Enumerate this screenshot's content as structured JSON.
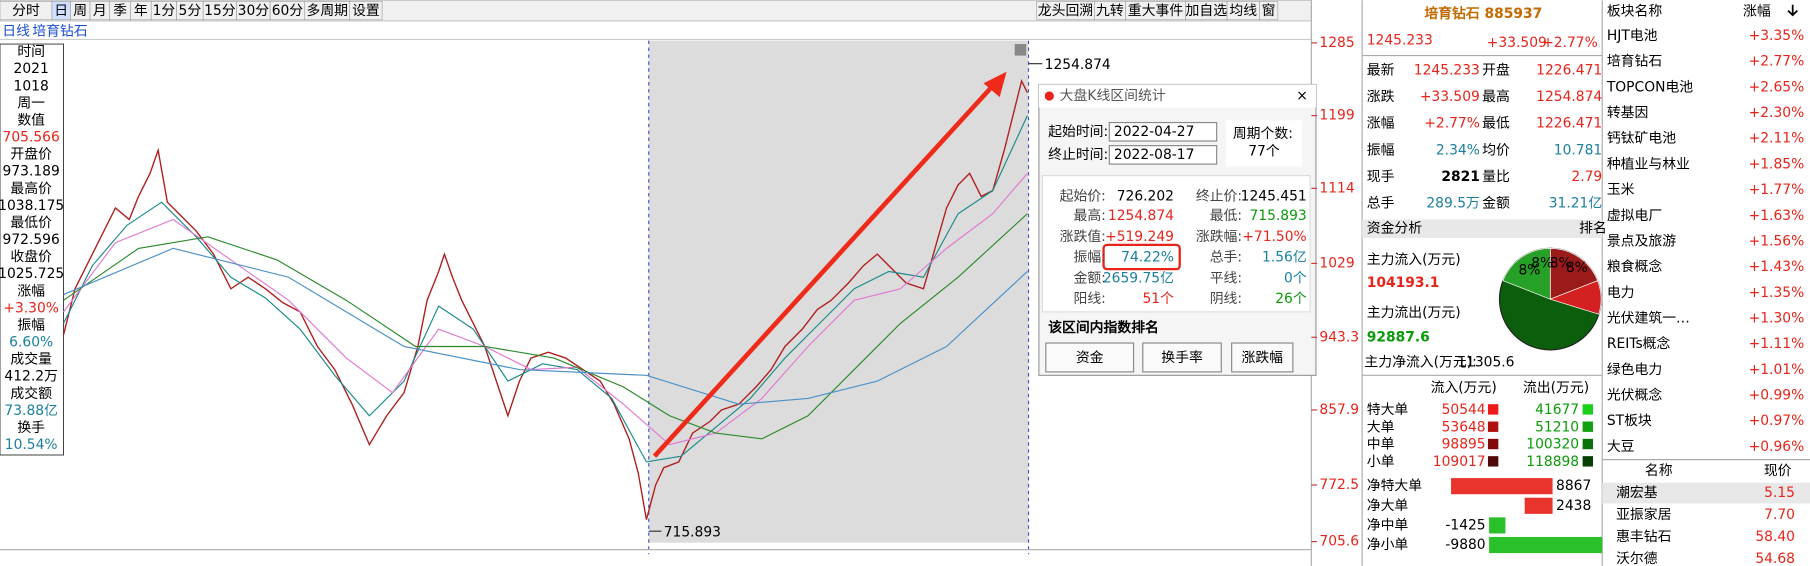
{
  "toolbar": {
    "left": [
      "分时",
      "日",
      "周",
      "月",
      "季",
      "年",
      "1分",
      "5分",
      "15分",
      "30分",
      "60分",
      "多周期",
      "设置"
    ],
    "right": [
      "龙头回溯",
      "九转",
      "重大事件",
      "加自选",
      "均线",
      "窗"
    ]
  },
  "chart": {
    "period": "日线",
    "name": "培育钻石",
    "axis": [
      "1285",
      "1199",
      "1114",
      "1029",
      "943.3",
      "857.9",
      "772.5",
      "705.6"
    ],
    "high_mark": "1254.874",
    "low_mark": "715.893"
  },
  "info": [
    "时间",
    "2021",
    "1018",
    "周一",
    "数值",
    "705.566",
    "开盘价",
    "973.189",
    "最高价",
    "1038.175",
    "最低价",
    "972.596",
    "收盘价",
    "1025.725",
    "涨幅",
    "+3.30%",
    "振幅",
    "6.60%",
    "成交量",
    "412.2万",
    "成交额",
    "73.88亿",
    "换手",
    "10.54%"
  ],
  "dialog": {
    "title": "大盘K线区间统计",
    "start_label": "起始时间:",
    "start": "2022-04-27",
    "end_label": "终止时间:",
    "end": "2022-08-17",
    "count_label": "周期个数:",
    "count": "77个",
    "stats": [
      [
        "起始价:",
        "726.202",
        "终止价:",
        "1245.451"
      ],
      [
        "最高:",
        "1254.874",
        "最低:",
        "715.893"
      ],
      [
        "涨跌值:",
        "+519.249",
        "涨跌幅:",
        "+71.50%"
      ],
      [
        "振幅:",
        "74.22%",
        "总手:",
        "1.56亿"
      ],
      [
        "金额:",
        "2659.75亿",
        "平线:",
        "0个"
      ],
      [
        "阳线:",
        "51个",
        "阴线:",
        "26个"
      ]
    ],
    "section": "该区间内指数排名",
    "buttons": [
      "资金",
      "换手率",
      "涨跌幅"
    ]
  },
  "quote": {
    "name": "培育钻石 885937",
    "price": "1245.233",
    "change": "+33.509",
    "pct": "+2.77%",
    "rows": [
      [
        "最新",
        "1245.233",
        "开盘",
        "1226.471"
      ],
      [
        "涨跌",
        "+33.509",
        "最高",
        "1254.874"
      ],
      [
        "涨幅",
        "+2.77%",
        "最低",
        "1226.471"
      ],
      [
        "振幅",
        "2.34%",
        "均价",
        "10.781"
      ],
      [
        "现手",
        "2821",
        "量比",
        "2.79"
      ],
      [
        "总手",
        "289.5万",
        "金额",
        "31.21亿"
      ]
    ]
  },
  "funds": {
    "tab": "资金分析",
    "tab_right": "排名",
    "inflow_label": "主力流入(万元)",
    "inflow": "104193.1",
    "outflow_label": "主力流出(万元)",
    "outflow": "92887.6",
    "net_label": "主力净流入(万元):",
    "net": "11305.6",
    "pie_labels": [
      "8%",
      "8%",
      "8%",
      "8%"
    ],
    "table_head": [
      "流入(万元)",
      "流出(万元)"
    ],
    "rows": [
      [
        "特大单",
        "50544",
        "41677"
      ],
      [
        "大单",
        "53648",
        "51210"
      ],
      [
        "中单",
        "98895",
        "100320"
      ],
      [
        "小单",
        "109017",
        "118898"
      ]
    ],
    "net_rows": [
      {
        "label": "净特大单",
        "value": 8867
      },
      {
        "label": "净大单",
        "value": 2438
      },
      {
        "label": "净中单",
        "value": -1425
      },
      {
        "label": "净小单",
        "value": -9880
      }
    ]
  },
  "sectors": {
    "head": [
      "板块名称",
      "涨幅"
    ],
    "rows": [
      [
        "HJT电池",
        "+3.35%"
      ],
      [
        "培育钻石",
        "+2.77%"
      ],
      [
        "TOPCON电池",
        "+2.65%"
      ],
      [
        "转基因",
        "+2.30%"
      ],
      [
        "钙钛矿电池",
        "+2.11%"
      ],
      [
        "种植业与林业",
        "+1.85%"
      ],
      [
        "玉米",
        "+1.77%"
      ],
      [
        "虚拟电厂",
        "+1.63%"
      ],
      [
        "景点及旅游",
        "+1.56%"
      ],
      [
        "粮食概念",
        "+1.43%"
      ],
      [
        "电力",
        "+1.35%"
      ],
      [
        "光伏建筑一…",
        "+1.30%"
      ],
      [
        "REITs概念",
        "+1.11%"
      ],
      [
        "绿色电力",
        "+1.01%"
      ],
      [
        "光伏概念",
        "+0.99%"
      ],
      [
        "ST板块",
        "+0.97%"
      ],
      [
        "大豆",
        "+0.96%"
      ]
    ]
  },
  "stocks": {
    "head": [
      "名称",
      "现价"
    ],
    "rows": [
      [
        "潮宏基",
        "5.15"
      ],
      [
        "亚振家居",
        "7.70"
      ],
      [
        "惠丰钻石",
        "58.40"
      ],
      [
        "沃尔德",
        "54.68"
      ]
    ]
  }
}
